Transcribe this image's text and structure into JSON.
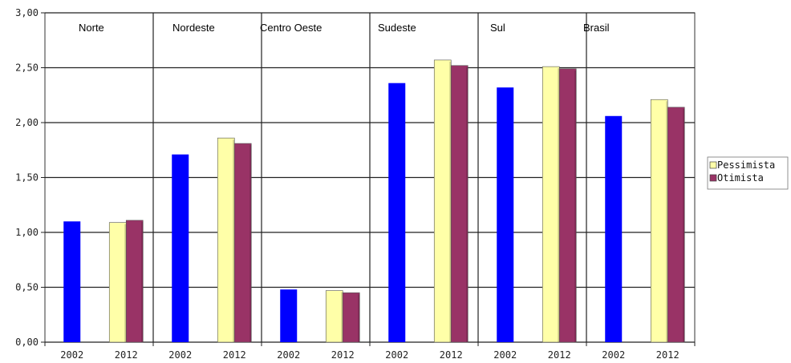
{
  "chart_data": {
    "type": "bar",
    "groups": [
      "Norte",
      "Nordeste",
      "Centro Oeste",
      "Sudeste",
      "Sul",
      "Brasil"
    ],
    "years": [
      "2002",
      "2012"
    ],
    "series": [
      {
        "key": "base",
        "color": "#0000ff",
        "values": [
          1.1,
          1.71,
          0.48,
          2.36,
          2.32,
          2.06
        ]
      },
      {
        "name": "Pessimista",
        "color": "#ffffa8",
        "values": [
          1.09,
          1.86,
          0.47,
          2.57,
          2.51,
          2.21
        ]
      },
      {
        "name": "Otimista",
        "color": "#993366",
        "values": [
          1.11,
          1.81,
          0.45,
          2.52,
          2.49,
          2.14
        ]
      }
    ],
    "y_ticks": [
      "0,00",
      "0,50",
      "1,00",
      "1,50",
      "2,00",
      "2,50",
      "3,00"
    ],
    "ylim": [
      0,
      3
    ],
    "grid": true,
    "legend_position": "right"
  }
}
